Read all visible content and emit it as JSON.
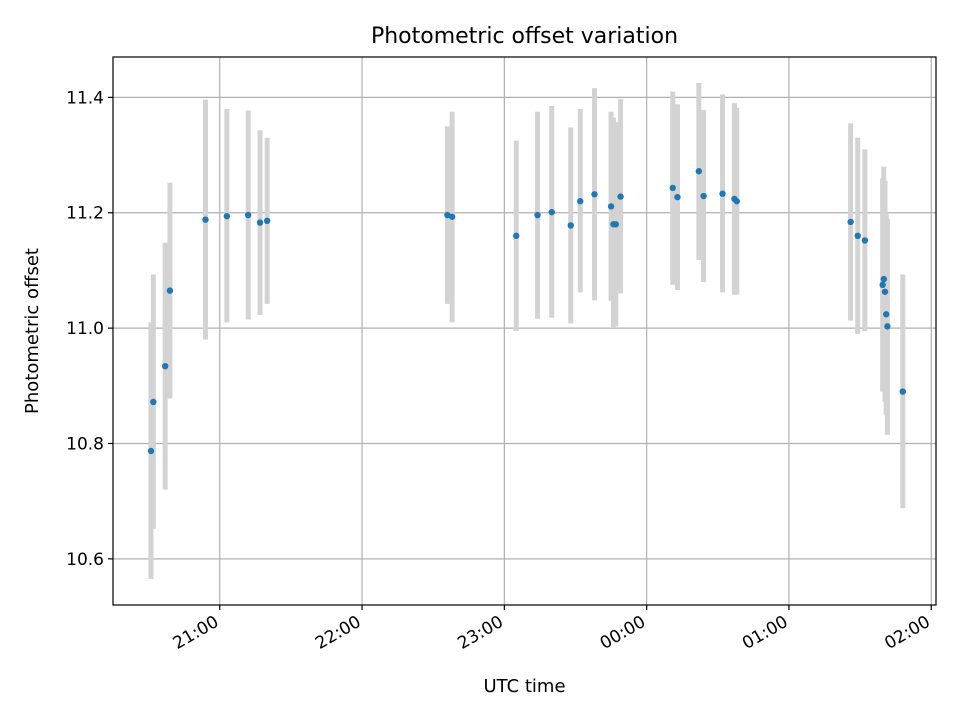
{
  "chart_data": {
    "type": "scatter",
    "title": "Photometric offset variation",
    "xlabel": "UTC time",
    "ylabel": "Photometric offset",
    "x_unit": "UTC time of day (times after 24:00 fall on the following day)",
    "xlim": [
      "20:15",
      "26:02"
    ],
    "ylim": [
      10.52,
      11.47
    ],
    "x_ticks": [
      "21:00",
      "22:00",
      "23:00",
      "00:00",
      "01:00",
      "02:00"
    ],
    "y_ticks": [
      "10.6",
      "10.8",
      "11.0",
      "11.2",
      "11.4"
    ],
    "grid": true,
    "legend": "none",
    "colors": {
      "points": "#1f77b4",
      "errorbars": "#d3d3d3",
      "grid": "#b0b0b0"
    },
    "points": [
      {
        "x": "20:31",
        "y": 10.787,
        "ylo": 10.565,
        "yhi": 11.01
      },
      {
        "x": "20:32",
        "y": 10.872,
        "ylo": 10.652,
        "yhi": 11.093
      },
      {
        "x": "20:37",
        "y": 10.934,
        "ylo": 10.72,
        "yhi": 11.148
      },
      {
        "x": "20:39",
        "y": 11.065,
        "ylo": 10.878,
        "yhi": 11.252
      },
      {
        "x": "20:54",
        "y": 11.188,
        "ylo": 10.98,
        "yhi": 11.396
      },
      {
        "x": "21:03",
        "y": 11.194,
        "ylo": 11.01,
        "yhi": 11.38
      },
      {
        "x": "21:12",
        "y": 11.196,
        "ylo": 11.015,
        "yhi": 11.377
      },
      {
        "x": "21:17",
        "y": 11.183,
        "ylo": 11.023,
        "yhi": 11.343
      },
      {
        "x": "21:20",
        "y": 11.186,
        "ylo": 11.042,
        "yhi": 11.33
      },
      {
        "x": "22:36",
        "y": 11.196,
        "ylo": 11.042,
        "yhi": 11.35
      },
      {
        "x": "22:38",
        "y": 11.193,
        "ylo": 11.01,
        "yhi": 11.375
      },
      {
        "x": "23:05",
        "y": 11.16,
        "ylo": 10.995,
        "yhi": 11.325
      },
      {
        "x": "23:14",
        "y": 11.196,
        "ylo": 11.016,
        "yhi": 11.375
      },
      {
        "x": "23:20",
        "y": 11.201,
        "ylo": 11.018,
        "yhi": 11.385
      },
      {
        "x": "23:28",
        "y": 11.178,
        "ylo": 11.008,
        "yhi": 11.348
      },
      {
        "x": "23:32",
        "y": 11.22,
        "ylo": 11.062,
        "yhi": 11.38
      },
      {
        "x": "23:38",
        "y": 11.232,
        "ylo": 11.048,
        "yhi": 11.416
      },
      {
        "x": "23:45",
        "y": 11.211,
        "ylo": 11.047,
        "yhi": 11.375
      },
      {
        "x": "23:46",
        "y": 11.18,
        "ylo": 11.0,
        "yhi": 11.365
      },
      {
        "x": "23:47",
        "y": 11.18,
        "ylo": 11.003,
        "yhi": 11.357
      },
      {
        "x": "23:49",
        "y": 11.228,
        "ylo": 11.06,
        "yhi": 11.397
      },
      {
        "x": "24:11",
        "y": 11.243,
        "ylo": 11.075,
        "yhi": 11.41
      },
      {
        "x": "24:13",
        "y": 11.227,
        "ylo": 11.066,
        "yhi": 11.388
      },
      {
        "x": "24:22",
        "y": 11.272,
        "ylo": 11.118,
        "yhi": 11.425
      },
      {
        "x": "24:24",
        "y": 11.229,
        "ylo": 11.08,
        "yhi": 11.378
      },
      {
        "x": "24:32",
        "y": 11.233,
        "ylo": 11.062,
        "yhi": 11.405
      },
      {
        "x": "24:37",
        "y": 11.224,
        "ylo": 11.058,
        "yhi": 11.39
      },
      {
        "x": "24:38",
        "y": 11.22,
        "ylo": 11.058,
        "yhi": 11.382
      },
      {
        "x": "25:26",
        "y": 11.184,
        "ylo": 11.013,
        "yhi": 11.355
      },
      {
        "x": "25:29",
        "y": 11.16,
        "ylo": 10.99,
        "yhi": 11.33
      },
      {
        "x": "25:32",
        "y": 11.152,
        "ylo": 10.995,
        "yhi": 11.31
      },
      {
        "x": "25:39.5",
        "y": 11.075,
        "ylo": 10.89,
        "yhi": 11.26
      },
      {
        "x": "25:40",
        "y": 11.085,
        "ylo": 10.9,
        "yhi": 11.28
      },
      {
        "x": "25:40.5",
        "y": 11.063,
        "ylo": 10.872,
        "yhi": 11.255
      },
      {
        "x": "25:41",
        "y": 11.024,
        "ylo": 10.85,
        "yhi": 11.2
      },
      {
        "x": "25:41.5",
        "y": 11.003,
        "ylo": 10.815,
        "yhi": 11.19
      },
      {
        "x": "25:48",
        "y": 10.89,
        "ylo": 10.688,
        "yhi": 11.093
      }
    ]
  }
}
